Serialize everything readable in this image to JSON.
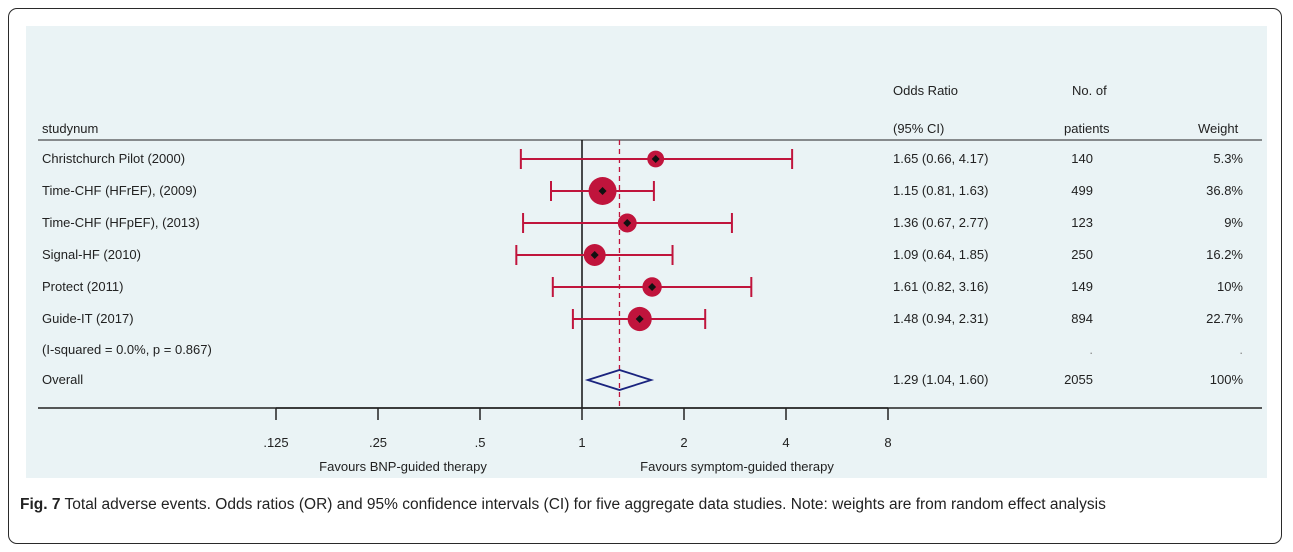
{
  "chart_data": {
    "type": "forest",
    "columns": {
      "study": "studynum",
      "or_line1": "Odds Ratio",
      "or_line2": "(95% CI)",
      "n_line1": "No. of",
      "n_line2": "patients",
      "weight": "Weight"
    },
    "rows": [
      {
        "label": "Christchurch Pilot (2000)",
        "or": 1.65,
        "lo": 0.66,
        "hi": 4.17,
        "ci_text": "1.65 (0.66, 4.17)",
        "n": "140",
        "weight": "5.3%",
        "w": 5.3
      },
      {
        "label": "Time-CHF (HFrEF), (2009)",
        "or": 1.15,
        "lo": 0.81,
        "hi": 1.63,
        "ci_text": "1.15 (0.81, 1.63)",
        "n": "499",
        "weight": "36.8%",
        "w": 36.8
      },
      {
        "label": "Time-CHF (HFpEF), (2013)",
        "or": 1.36,
        "lo": 0.67,
        "hi": 2.77,
        "ci_text": "1.36 (0.67, 2.77)",
        "n": "123",
        "weight": "9%",
        "w": 9
      },
      {
        "label": "Signal-HF (2010)",
        "or": 1.09,
        "lo": 0.64,
        "hi": 1.85,
        "ci_text": "1.09 (0.64, 1.85)",
        "n": "250",
        "weight": "16.2%",
        "w": 16.2
      },
      {
        "label": "Protect (2011)",
        "or": 1.61,
        "lo": 0.82,
        "hi": 3.16,
        "ci_text": "1.61 (0.82, 3.16)",
        "n": "149",
        "weight": "10%",
        "w": 10
      },
      {
        "label": "Guide-IT (2017)",
        "or": 1.48,
        "lo": 0.94,
        "hi": 2.31,
        "ci_text": "1.48 (0.94, 2.31)",
        "n": "894",
        "weight": "22.7%",
        "w": 22.7
      }
    ],
    "heterogeneity": {
      "label": "(I-squared = 0.0%, p = 0.867)",
      "n": ".",
      "weight": "."
    },
    "overall": {
      "label": "Overall",
      "or": 1.29,
      "lo": 1.04,
      "hi": 1.6,
      "ci_text": "1.29 (1.04, 1.60)",
      "n": "2055",
      "weight": "100%"
    },
    "x_scale": "log",
    "xticks": [
      0.125,
      0.25,
      0.5,
      1,
      2,
      4,
      8
    ],
    "xtick_labels": [
      ".125",
      ".25",
      ".5",
      "1",
      "2",
      "4",
      "8"
    ],
    "null_line": 1,
    "favours_left": "Favours BNP-guided therapy",
    "favours_right": "Favours symptom-guided therapy",
    "colors": {
      "ci": "#c0143c",
      "marker": "#c0143c",
      "center": "#111111",
      "diamond": "#1a237e",
      "overall_line": "#c0143c",
      "panel_bg": "#eaf3f5"
    }
  },
  "caption": {
    "label": "Fig. 7",
    "text": " Total adverse events. Odds ratios (OR) and 95% confidence intervals (CI) for five aggregate data studies. Note: weights are from random effect analysis"
  }
}
